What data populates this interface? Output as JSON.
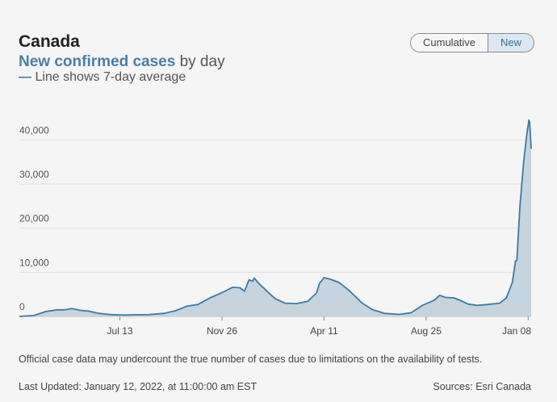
{
  "header": {
    "title": "Canada",
    "subtitle_accent": "New confirmed cases",
    "subtitle_rest": " by day",
    "legend_dash": "—",
    "legend_note": " Line shows 7-day average"
  },
  "toggle": {
    "cumulative_label": "Cumulative",
    "new_label": "New"
  },
  "footer": {
    "note": "Official case data may undercount the true number of cases due to limitations on the availability of tests.",
    "updated": "Last Updated: January 12, 2022, at 11:00:00 am EST",
    "sources": "Sources: Esri Canada"
  },
  "colors": {
    "line": "#3f7aa5",
    "fill": "#c5d4df",
    "grid": "#e0e0e0"
  },
  "chart_data": {
    "type": "area",
    "ylim": [
      0,
      45000
    ],
    "yticks": [
      0,
      10000,
      20000,
      30000,
      40000
    ],
    "ytick_labels": [
      "0",
      "10,000",
      "20,000",
      "30,000",
      "40,000"
    ],
    "xlim": [
      "2020-03-01",
      "2022-01-12"
    ],
    "xticks": [
      "2020-07-13",
      "2020-11-26",
      "2021-04-11",
      "2021-08-25",
      "2022-01-08"
    ],
    "xtick_labels": [
      "Jul 13",
      "Nov 26",
      "Apr 11",
      "Aug 25",
      "Jan 08"
    ],
    "grid": true,
    "series": [
      {
        "values": [
          [
            "2020-03-01",
            0
          ],
          [
            "2020-03-20",
            200
          ],
          [
            "2020-04-05",
            1100
          ],
          [
            "2020-04-20",
            1500
          ],
          [
            "2020-05-01",
            1500
          ],
          [
            "2020-05-10",
            1800
          ],
          [
            "2020-05-20",
            1400
          ],
          [
            "2020-06-01",
            1200
          ],
          [
            "2020-06-15",
            700
          ],
          [
            "2020-07-01",
            400
          ],
          [
            "2020-07-20",
            320
          ],
          [
            "2020-08-01",
            380
          ],
          [
            "2020-08-20",
            400
          ],
          [
            "2020-09-10",
            700
          ],
          [
            "2020-09-25",
            1300
          ],
          [
            "2020-10-10",
            2300
          ],
          [
            "2020-10-25",
            2700
          ],
          [
            "2020-11-10",
            4200
          ],
          [
            "2020-11-25",
            5300
          ],
          [
            "2020-12-10",
            6600
          ],
          [
            "2020-12-20",
            6500
          ],
          [
            "2020-12-26",
            5700
          ],
          [
            "2021-01-01",
            8300
          ],
          [
            "2021-01-06",
            8000
          ],
          [
            "2021-01-08",
            8700
          ],
          [
            "2021-01-14",
            7500
          ],
          [
            "2021-01-25",
            5700
          ],
          [
            "2021-02-05",
            4000
          ],
          [
            "2021-02-18",
            3000
          ],
          [
            "2021-03-05",
            2900
          ],
          [
            "2021-03-20",
            3400
          ],
          [
            "2021-04-01",
            5300
          ],
          [
            "2021-04-05",
            7500
          ],
          [
            "2021-04-11",
            8800
          ],
          [
            "2021-04-20",
            8400
          ],
          [
            "2021-05-01",
            7700
          ],
          [
            "2021-05-15",
            5800
          ],
          [
            "2021-06-01",
            3000
          ],
          [
            "2021-06-15",
            1500
          ],
          [
            "2021-07-01",
            700
          ],
          [
            "2021-07-20",
            450
          ],
          [
            "2021-08-05",
            850
          ],
          [
            "2021-08-20",
            2500
          ],
          [
            "2021-09-05",
            3700
          ],
          [
            "2021-09-12",
            4800
          ],
          [
            "2021-09-20",
            4300
          ],
          [
            "2021-10-01",
            4200
          ],
          [
            "2021-10-10",
            3600
          ],
          [
            "2021-10-20",
            2800
          ],
          [
            "2021-11-01",
            2500
          ],
          [
            "2021-11-15",
            2700
          ],
          [
            "2021-12-01",
            3000
          ],
          [
            "2021-12-10",
            4200
          ],
          [
            "2021-12-18",
            7800
          ],
          [
            "2021-12-22",
            12500
          ],
          [
            "2021-12-24",
            12700
          ],
          [
            "2021-12-28",
            25000
          ],
          [
            "2022-01-02",
            35000
          ],
          [
            "2022-01-06",
            41000
          ],
          [
            "2022-01-09",
            44500
          ],
          [
            "2022-01-10",
            44000
          ],
          [
            "2022-01-11",
            41000
          ],
          [
            "2022-01-12",
            38000
          ]
        ]
      }
    ]
  }
}
